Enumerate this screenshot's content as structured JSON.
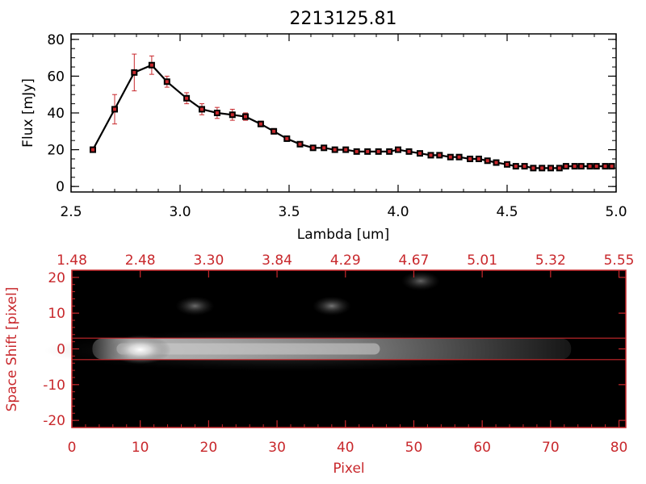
{
  "colors": {
    "accent_red": "#c8282c",
    "line": "#000000",
    "marker": "#c8282c"
  },
  "chart_data": [
    {
      "type": "line",
      "title": "2213125.81",
      "xlabel": "Lambda [um]",
      "ylabel": "Flux [mJy]",
      "xlim": [
        2.5,
        5.0
      ],
      "ylim": [
        -3,
        83
      ],
      "xticks": [
        2.5,
        3.0,
        3.5,
        4.0,
        4.5,
        5.0
      ],
      "xtick_labels": [
        "2.5",
        "3.0",
        "3.5",
        "4.0",
        "4.5",
        "5.0"
      ],
      "yticks": [
        0,
        20,
        40,
        60,
        80
      ],
      "ytick_labels": [
        "0",
        "20",
        "40",
        "60",
        "80"
      ],
      "series": [
        {
          "name": "flux",
          "x": [
            2.6,
            2.7,
            2.79,
            2.87,
            2.94,
            3.03,
            3.1,
            3.17,
            3.24,
            3.3,
            3.37,
            3.43,
            3.49,
            3.55,
            3.61,
            3.66,
            3.71,
            3.76,
            3.81,
            3.86,
            3.91,
            3.96,
            4.0,
            4.05,
            4.1,
            4.15,
            4.19,
            4.24,
            4.28,
            4.33,
            4.37,
            4.41,
            4.45,
            4.5,
            4.54,
            4.58,
            4.62,
            4.66,
            4.7,
            4.74,
            4.77,
            4.81,
            4.84,
            4.88,
            4.91,
            4.95,
            4.98
          ],
          "y": [
            20,
            42,
            62,
            66,
            57,
            48,
            42,
            40,
            39,
            38,
            34,
            30,
            26,
            23,
            21,
            21,
            20,
            20,
            19,
            19,
            19,
            19,
            20,
            19,
            18,
            17,
            17,
            16,
            16,
            15,
            15,
            14,
            13,
            12,
            11,
            11,
            10,
            10,
            10,
            10,
            11,
            11,
            11,
            11,
            11,
            11,
            11
          ],
          "yerr": [
            1.5,
            8,
            10,
            5,
            3,
            3,
            3,
            3,
            3,
            2,
            1.5,
            1.5,
            1,
            1,
            1,
            1,
            1,
            1,
            1,
            1,
            1,
            1,
            1,
            1,
            1,
            1,
            1,
            1,
            1,
            1,
            1,
            1,
            1,
            1,
            1,
            1,
            1,
            1,
            1,
            1,
            1,
            1,
            1,
            1,
            1,
            1,
            1
          ]
        }
      ]
    },
    {
      "type": "heatmap",
      "xlabel": "Pixel",
      "ylabel": "Space Shift [pixel]",
      "xlim": [
        0,
        81
      ],
      "ylim": [
        -22,
        22
      ],
      "xticks": [
        0,
        10,
        20,
        30,
        40,
        50,
        60,
        70,
        80
      ],
      "xtick_labels": [
        "0",
        "10",
        "20",
        "30",
        "40",
        "50",
        "60",
        "70",
        "80"
      ],
      "yticks": [
        -20,
        -10,
        0,
        10,
        20
      ],
      "ytick_labels": [
        "-20",
        "-10",
        "0",
        "10",
        "20"
      ],
      "top_ticks": [
        0,
        10,
        20,
        30,
        40,
        50,
        60,
        70,
        80
      ],
      "top_axis_labels": [
        "1.48",
        "2.48",
        "3.30",
        "3.84",
        "4.29",
        "4.67",
        "5.01",
        "5.32",
        "5.55"
      ],
      "extraction_lines_y": [
        3,
        -3
      ],
      "sources": [
        {
          "name": "main-trace",
          "x_start": 3,
          "x_end": 73,
          "peak_x": 10,
          "y": 0,
          "peak": 1.0
        },
        {
          "name": "blob-upper-left",
          "x": 18,
          "y": 12,
          "peak": 0.32
        },
        {
          "name": "blob-upper-mid",
          "x": 38,
          "y": 12,
          "peak": 0.35
        },
        {
          "name": "blob-top-right",
          "x": 51,
          "y": 19,
          "peak": 0.3
        }
      ]
    }
  ]
}
